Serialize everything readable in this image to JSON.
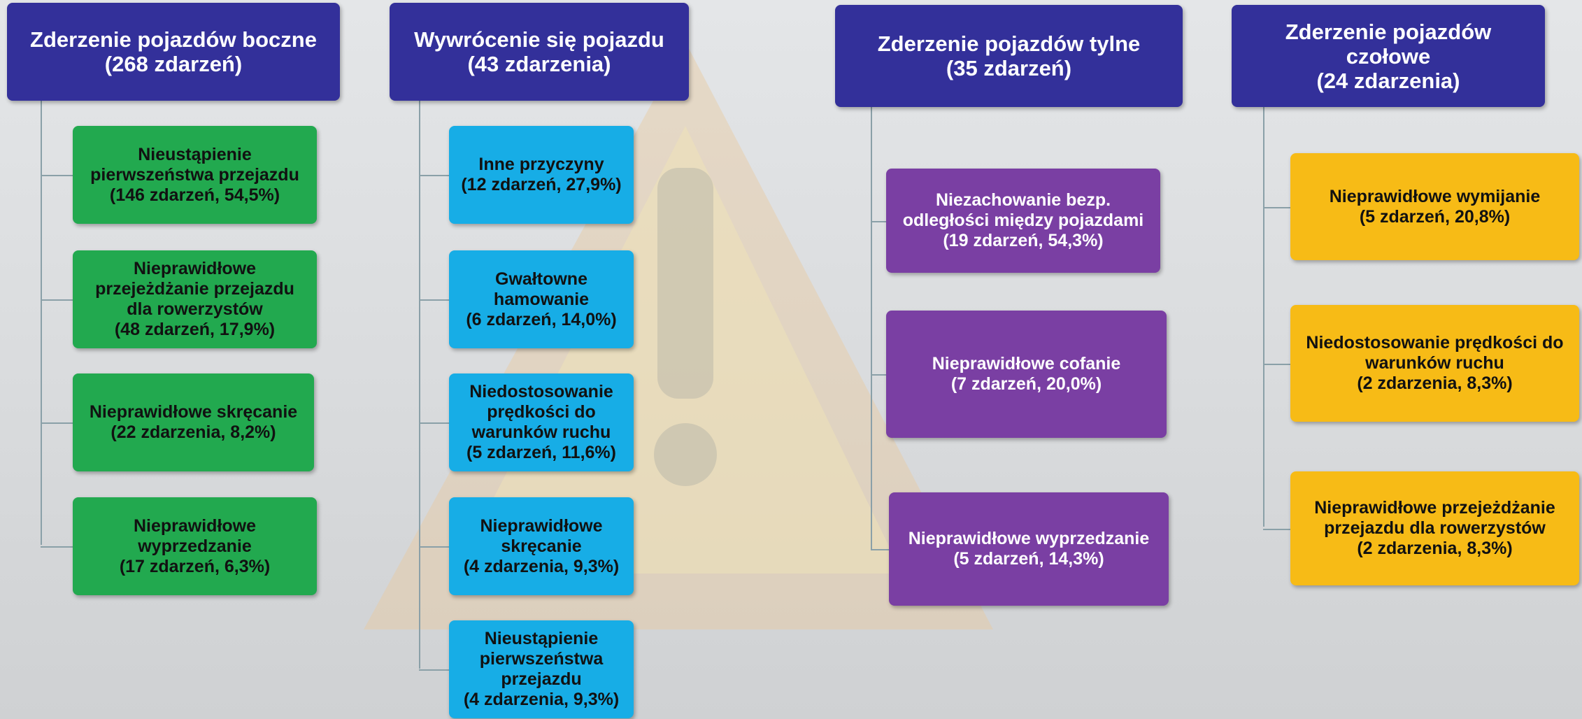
{
  "columns": [
    {
      "title": [
        "Zderzenie pojazdów boczne",
        "(268 zdarzeń)"
      ],
      "items": [
        [
          "Nieustąpienie",
          "pierwszeństwa przejazdu",
          "(146 zdarzeń, 54,5%)"
        ],
        [
          "Nieprawidłowe",
          "przejeżdżanie przejazdu",
          "dla rowerzystów",
          "(48 zdarzeń, 17,9%)"
        ],
        [
          "Nieprawidłowe skręcanie",
          "(22 zdarzenia, 8,2%)"
        ],
        [
          "Nieprawidłowe",
          "wyprzedzanie",
          "(17 zdarzeń, 6,3%)"
        ]
      ]
    },
    {
      "title": [
        "Wywrócenie się pojazdu",
        "(43 zdarzenia)"
      ],
      "items": [
        [
          "Inne przyczyny",
          "(12 zdarzeń, 27,9%)"
        ],
        [
          "Gwałtowne",
          "hamowanie",
          "(6 zdarzeń, 14,0%)"
        ],
        [
          "Niedostosowanie",
          "prędkości do",
          "warunków ruchu",
          "(5 zdarzeń, 11,6%)"
        ],
        [
          "Nieprawidłowe",
          "skręcanie",
          "(4 zdarzenia, 9,3%)"
        ],
        [
          "Nieustąpienie",
          "pierwszeństwa",
          "przejazdu",
          "(4 zdarzenia, 9,3%)"
        ]
      ]
    },
    {
      "title": [
        "Zderzenie pojazdów tylne",
        "(35 zdarzeń)"
      ],
      "items": [
        [
          "Niezachowanie bezp.",
          "odległości między pojazdami",
          "(19 zdarzeń, 54,3%)"
        ],
        [
          "Nieprawidłowe cofanie",
          "(7 zdarzeń, 20,0%)"
        ],
        [
          "Nieprawidłowe wyprzedzanie",
          "(5 zdarzeń, 14,3%)"
        ]
      ]
    },
    {
      "title": [
        "Zderzenie pojazdów",
        "czołowe",
        "(24 zdarzenia)"
      ],
      "items": [
        [
          "Nieprawidłowe wymijanie",
          "(5 zdarzeń, 20,8%)"
        ],
        [
          "Niedostosowanie prędkości do",
          "warunków ruchu",
          "(2 zdarzenia, 8,3%)"
        ],
        [
          "Nieprawidłowe przejeżdżanie",
          "przejazdu dla rowerzystów",
          "(2 zdarzenia, 8,3%)"
        ]
      ]
    }
  ]
}
